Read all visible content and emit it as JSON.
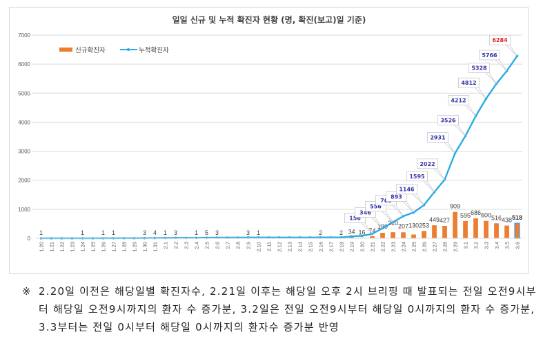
{
  "chart_data": {
    "type": "bar+line",
    "title": "일일 신규 및 누적 확진자 현황 (명, 확진(보고)일 기준)",
    "xlabel": "",
    "ylabel": "",
    "ylim": [
      0,
      7000
    ],
    "yticks": [
      0,
      1000,
      2000,
      3000,
      4000,
      5000,
      6000,
      7000
    ],
    "grid": true,
    "legend_position": "top-left",
    "categories": [
      "1.20",
      "1.21",
      "1.22",
      "1.23",
      "1.24",
      "1.25",
      "1.26",
      "1.27",
      "1.28",
      "1.29",
      "1.30",
      "1.31",
      "2.1",
      "2.2",
      "2.3",
      "2.4",
      "2.5",
      "2.6",
      "2.7",
      "2.8",
      "2.9",
      "2.10",
      "2.11",
      "2.12",
      "2.13",
      "2.14",
      "2.15",
      "2.16",
      "2.17",
      "2.18",
      "2.19",
      "2.20",
      "2.21",
      "2.22",
      "2.23",
      "2.24",
      "2.25",
      "2.26",
      "2.27",
      "2.28",
      "2.29",
      "3.1",
      "3.2",
      "3.3",
      "3.4",
      "3.5",
      "3.6"
    ],
    "series": [
      {
        "name": "신규확진자",
        "type": "bar",
        "color": "#ed7d31",
        "highlight_last_color": "#5b9bd5",
        "values": [
          1,
          0,
          0,
          0,
          1,
          0,
          1,
          1,
          0,
          0,
          3,
          4,
          1,
          3,
          0,
          1,
          5,
          3,
          0,
          0,
          3,
          1,
          0,
          0,
          0,
          0,
          0,
          2,
          0,
          2,
          34,
          16,
          74,
          190,
          210,
          207,
          130,
          253,
          449,
          427,
          909,
          595,
          686,
          600,
          516,
          438,
          518
        ],
        "labels": [
          "1",
          "",
          "",
          "",
          "1",
          "",
          "1",
          "1",
          "",
          "",
          "3",
          "4",
          "1",
          "3",
          "",
          "1",
          "5",
          "3",
          "",
          "",
          "3",
          "1",
          "",
          "",
          "",
          "",
          "",
          "2",
          "",
          "2",
          "34",
          "16",
          "74",
          "190",
          "210",
          "207",
          "130",
          "253",
          "449",
          "427",
          "909",
          "595",
          "686",
          "600",
          "516",
          "438",
          "518"
        ]
      },
      {
        "name": "누적확진자",
        "type": "line",
        "color": "#29abe2",
        "values": [
          1,
          1,
          1,
          1,
          2,
          2,
          3,
          4,
          4,
          4,
          7,
          11,
          12,
          15,
          15,
          16,
          21,
          24,
          24,
          24,
          27,
          28,
          28,
          28,
          28,
          28,
          28,
          30,
          30,
          32,
          66,
          82,
          156,
          346,
          556,
          763,
          893,
          1146,
          1595,
          2022,
          2931,
          3526,
          4212,
          4812,
          5328,
          5766,
          6284
        ],
        "labeled_points": {
          "2.21": 156,
          "2.22": 346,
          "2.23": 556,
          "2.24": 763,
          "2.25": 893,
          "2.26": 1146,
          "2.27": 1595,
          "2.28": 2022,
          "2.29": 2931,
          "3.1": 3526,
          "3.2": 4212,
          "3.3": 4812,
          "3.4": 5328,
          "3.5": 5766,
          "3.6": 6284
        }
      }
    ],
    "highlight_label_color": "#e02020"
  },
  "note": {
    "mark": "※",
    "text": "2.20일 이전은 해당일별 확진자수, 2.21일 이후는 해당일 오후 2시 브리핑 때 발표되는 전일 오전9시부터 해당일 오전9시까지의 환자 수 증가분, 3.2일은 전일 오전9시부터 해당일 0시까지의 환자 수 증가분, 3.3부터는 전일 0시부터 해당일 0시까지의 환자수 증가분 반영"
  }
}
